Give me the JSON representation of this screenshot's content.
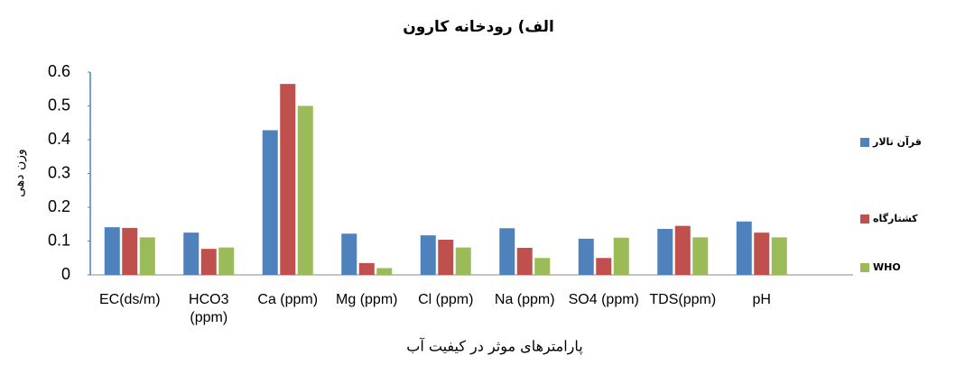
{
  "chart_data": {
    "type": "bar",
    "title": "الف) رودخانه کارون",
    "x_label": "پارامترهای موثر در کیفیت آب",
    "y_label": "وزن دهی",
    "categories": [
      "EC(ds/m)",
      "HCO3 (ppm)",
      "Ca (ppm)",
      "Mg (ppm)",
      "Cl (ppm)",
      "Na (ppm)",
      "SO4 (ppm)",
      "TDS(ppm)",
      "pH",
      null
    ],
    "series": [
      {
        "name": "قرآن تالار",
        "color": "#4f81bd",
        "values": [
          0.141,
          0.125,
          0.428,
          0.122,
          0.117,
          0.138,
          0.107,
          0.136,
          0.158,
          null
        ]
      },
      {
        "name": "کشتارگاه",
        "color": "#c0504d",
        "values": [
          0.139,
          0.077,
          0.565,
          0.035,
          0.104,
          0.08,
          0.05,
          0.145,
          0.125,
          null
        ]
      },
      {
        "name": "WHO",
        "color": "#9bbb59",
        "values": [
          0.111,
          0.081,
          0.5,
          0.02,
          0.081,
          0.05,
          0.11,
          0.111,
          0.111,
          null
        ]
      }
    ],
    "ylim": [
      0,
      0.6
    ],
    "yticks": [
      0,
      0.1,
      0.2,
      0.3,
      0.4,
      0.5,
      0.6
    ],
    "legend": "right"
  }
}
